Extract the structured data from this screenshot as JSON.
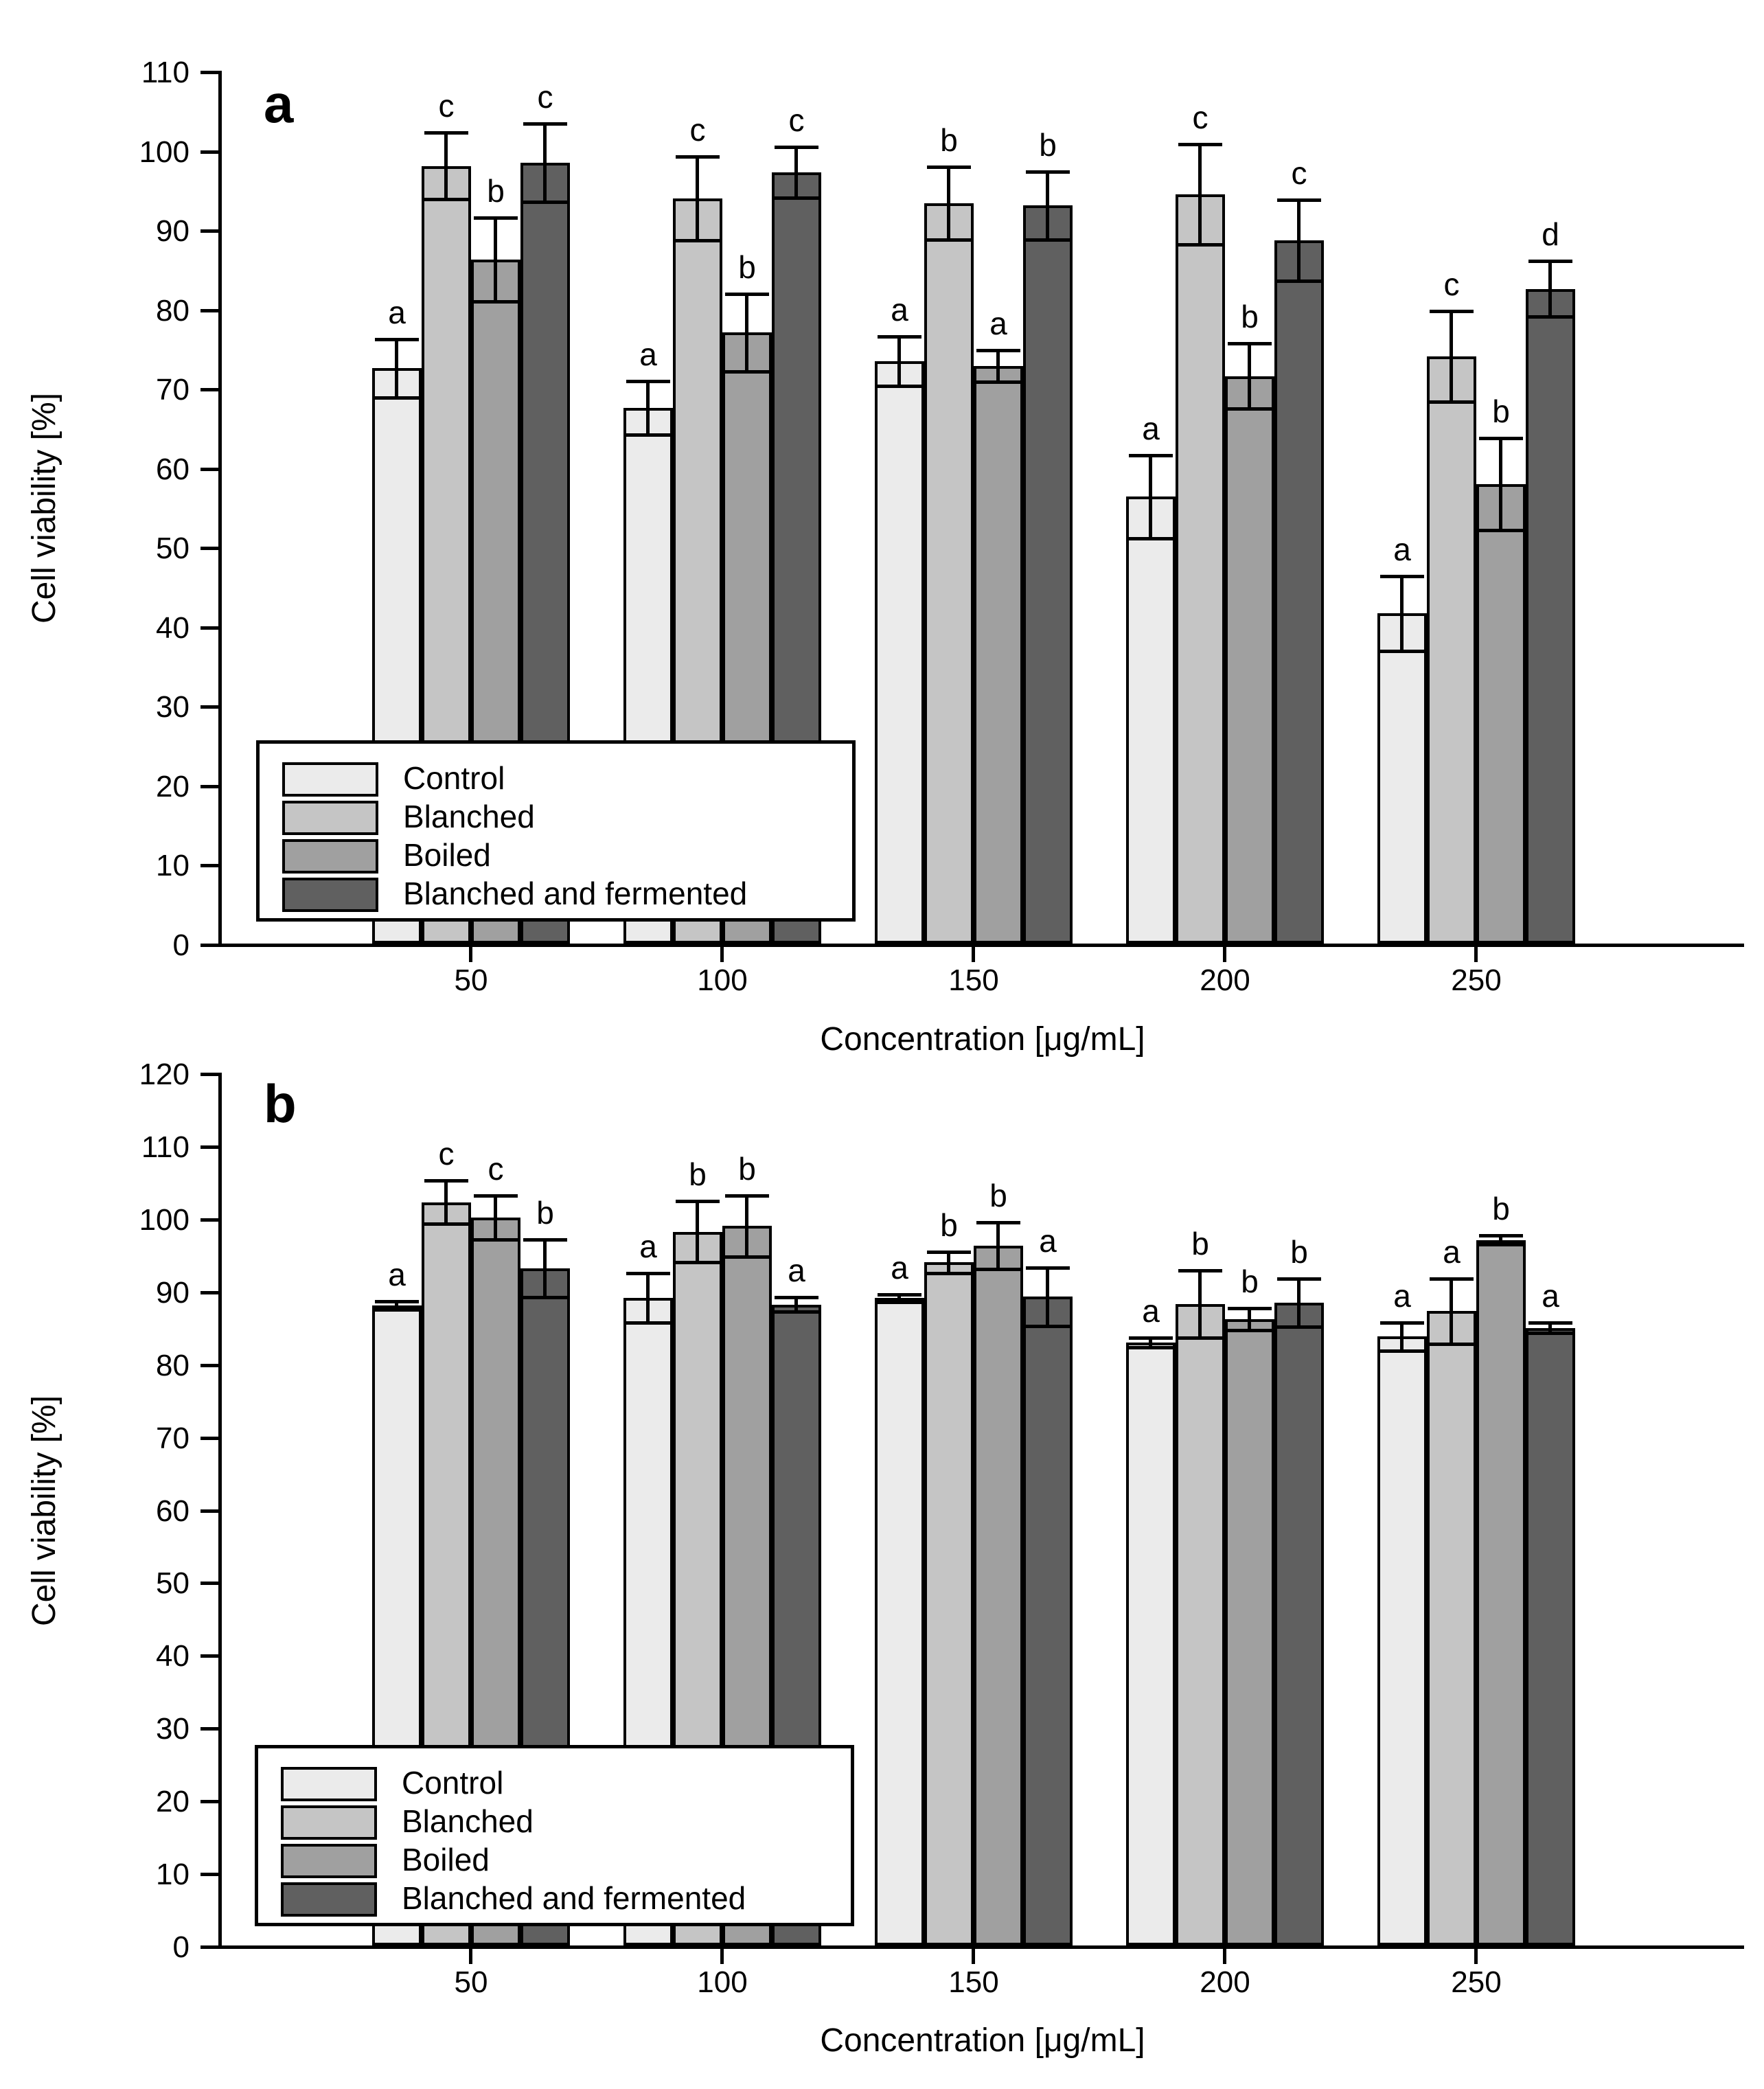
{
  "chart_data": [
    {
      "type": "bar",
      "panel_label": "a",
      "xlabel": "Concentration [μg/mL]",
      "ylabel": "Cell viability [%]",
      "ylim": [
        0,
        110
      ],
      "ytick_step": 10,
      "grid": false,
      "legend_position": "lower left",
      "categories": [
        "50",
        "100",
        "150",
        "200",
        "250"
      ],
      "series": [
        {
          "name": "Control",
          "color": "#ebebeb",
          "values": [
            72.5,
            67.5,
            73.4,
            56.3,
            41.6
          ],
          "errors": [
            3.7,
            3.4,
            3.1,
            5.2,
            4.7
          ],
          "letters": [
            "a",
            "a",
            "a",
            "a",
            "a"
          ]
        },
        {
          "name": "Blanched",
          "color": "#c5c5c5",
          "values": [
            98.0,
            93.9,
            93.3,
            94.4,
            74.0
          ],
          "errors": [
            4.2,
            5.3,
            4.6,
            6.3,
            5.7
          ],
          "letters": [
            "c",
            "c",
            "b",
            "c",
            "c"
          ]
        },
        {
          "name": "Boiled",
          "color": "#a0a0a0",
          "values": [
            86.2,
            77.0,
            72.8,
            71.5,
            57.9
          ],
          "errors": [
            5.3,
            4.9,
            2.0,
            4.1,
            5.8
          ],
          "letters": [
            "b",
            "b",
            "a",
            "b",
            "b"
          ]
        },
        {
          "name": "Blanched and fermented",
          "color": "#606060",
          "values": [
            98.4,
            97.2,
            93.0,
            88.6,
            82.5
          ],
          "errors": [
            4.9,
            3.2,
            4.3,
            5.1,
            3.5
          ],
          "letters": [
            "c",
            "c",
            "b",
            "c",
            "d"
          ]
        }
      ]
    },
    {
      "type": "bar",
      "panel_label": "b",
      "xlabel": "Concentration [μg/mL]",
      "ylabel": "Cell viability [%]",
      "ylim": [
        0,
        120
      ],
      "ytick_step": 10,
      "grid": false,
      "legend_position": "lower left",
      "categories": [
        "50",
        "100",
        "150",
        "200",
        "250"
      ],
      "series": [
        {
          "name": "Control",
          "color": "#ebebeb",
          "values": [
            88.0,
            89.0,
            89.0,
            82.9,
            83.7
          ],
          "errors": [
            0.6,
            3.4,
            0.5,
            0.7,
            1.9
          ],
          "letters": [
            "a",
            "a",
            "a",
            "a",
            "a"
          ]
        },
        {
          "name": "Blanched",
          "color": "#c5c5c5",
          "values": [
            102.2,
            98.1,
            93.9,
            88.2,
            87.2
          ],
          "errors": [
            3.0,
            4.2,
            1.5,
            4.6,
            4.5
          ],
          "letters": [
            "c",
            "b",
            "b",
            "b",
            "a"
          ]
        },
        {
          "name": "Boiled",
          "color": "#a0a0a0",
          "values": [
            100.1,
            98.9,
            96.2,
            86.1,
            97.0
          ],
          "errors": [
            3.0,
            4.2,
            3.2,
            1.5,
            0.6
          ],
          "letters": [
            "c",
            "b",
            "b",
            "b",
            "b"
          ]
        },
        {
          "name": "Blanched and fermented",
          "color": "#606060",
          "values": [
            93.1,
            88.1,
            89.2,
            88.4,
            84.9
          ],
          "errors": [
            4.0,
            1.0,
            4.0,
            3.3,
            0.7
          ],
          "letters": [
            "b",
            "a",
            "a",
            "b",
            "a"
          ]
        }
      ]
    }
  ]
}
